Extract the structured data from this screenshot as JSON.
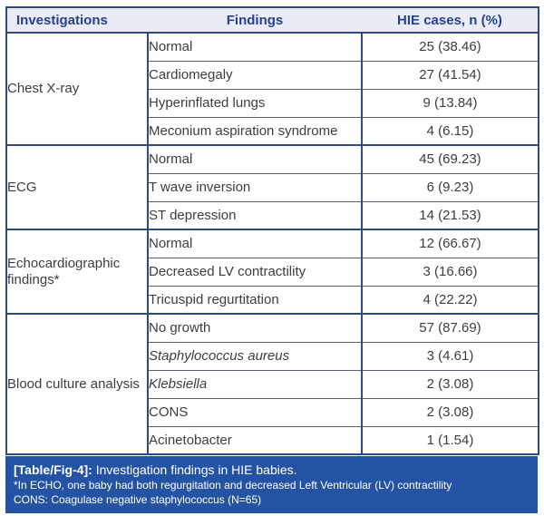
{
  "table": {
    "headers": {
      "investigations": "Investigations",
      "findings": "Findings",
      "cases": "HIE cases, n (%)"
    },
    "groups": [
      {
        "investigation": "Chest X-ray",
        "rows": [
          {
            "finding": "Normal",
            "value": "25 (38.46)"
          },
          {
            "finding": "Cardiomegaly",
            "value": "27 (41.54)"
          },
          {
            "finding": "Hyperinflated lungs",
            "value": "9 (13.84)"
          },
          {
            "finding": "Meconium aspiration syndrome",
            "value": "4 (6.15)"
          }
        ]
      },
      {
        "investigation": "ECG",
        "rows": [
          {
            "finding": "Normal",
            "value": "45 (69.23)"
          },
          {
            "finding": "T wave inversion",
            "value": "6 (9.23)"
          },
          {
            "finding": "ST depression",
            "value": "14 (21.53)"
          }
        ]
      },
      {
        "investigation": "Echocardiographic findings*",
        "rows": [
          {
            "finding": "Normal",
            "value": "12 (66.67)"
          },
          {
            "finding": "Decreased LV contractility",
            "value": "3 (16.66)"
          },
          {
            "finding": "Tricuspid regurtitation",
            "value": "4 (22.22)"
          }
        ]
      },
      {
        "investigation": "Blood culture analysis",
        "rows": [
          {
            "finding": "No growth",
            "value": "57 (87.69)"
          },
          {
            "finding": "Staphylococcus aureus",
            "value": "3 (4.61)",
            "italic": true
          },
          {
            "finding": "Klebsiella",
            "value": "2 (3.08)",
            "italic": true
          },
          {
            "finding": "CONS",
            "value": "2 (3.08)"
          },
          {
            "finding": "Acinetobacter",
            "value": "1 (1.54)"
          }
        ]
      }
    ]
  },
  "footer": {
    "caption_label": "[Table/Fig-4]:",
    "caption_text": " Investigation findings in HIE babies.",
    "notes": [
      "*In ECHO, one baby had both regurgitation and decreased Left Ventricular (LV) contractility",
      "CONS: Coagulase negative staphylococcus (N=65)"
    ]
  },
  "colors": {
    "header_bg": "#eaecf5",
    "header_text": "#26418f",
    "border_heavy": "#2e4a7e",
    "border_light": "#5a6275",
    "footer_bg": "#2553a3",
    "footer_text": "#ffffff",
    "body_text": "#3d3d3f"
  }
}
